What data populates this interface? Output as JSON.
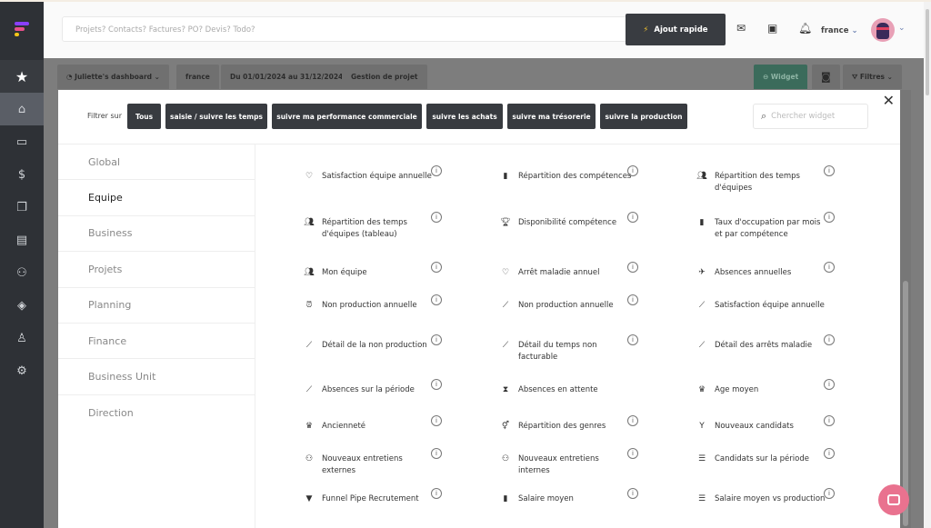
{
  "header": {
    "search_placeholder": "Projets? Contacts? Factures? PO? Devis? Todo?",
    "quick_add": "Ajout rapide",
    "country": "france"
  },
  "toolbar": {
    "dashboard": "Juliette's dashboard",
    "country": "france",
    "period": "Du 01/01/2024 au 31/12/2024",
    "project": "Gestion de projet",
    "widget": "Widget",
    "filters": "Filtres"
  },
  "modal": {
    "filter_label": "Filtrer sur",
    "filters": [
      "Tous",
      "saisie / suivre les temps",
      "suivre ma performance commerciale",
      "suivre les achats",
      "suivre ma trésorerie",
      "suivre la production"
    ],
    "search_placeholder": "Chercher widget",
    "categories": [
      "Global",
      "Equipe",
      "Business",
      "Projets",
      "Planning",
      "Finance",
      "Business Unit",
      "Direction"
    ],
    "selected_category": "Equipe",
    "widgets": [
      {
        "label": "Satisfaction équipe annuelle",
        "icon": "heart-icon"
      },
      {
        "label": "Répartition des compétences",
        "icon": "bar-chart-icon"
      },
      {
        "label": "Répartition des temps d'équipes",
        "icon": "group-icon"
      },
      {
        "label": "Répartition des temps d'équipes (tableau)",
        "icon": "group-icon"
      },
      {
        "label": "Disponibilité compétence",
        "icon": "trophy-icon"
      },
      {
        "label": "Taux d'occupation par mois et par compétence",
        "icon": "bar-chart-icon"
      },
      {
        "label": "Mon équipe",
        "icon": "group-icon"
      },
      {
        "label": "Arrêt maladie annuel",
        "icon": "heart-icon"
      },
      {
        "label": "Absences annuelles",
        "icon": "plane-departure-icon"
      },
      {
        "label": "Non production annuelle",
        "icon": "alarm-off-icon"
      },
      {
        "label": "Non production annuelle",
        "icon": "line-chart-icon"
      },
      {
        "label": "Satisfaction équipe annuelle",
        "icon": "line-chart-icon"
      },
      {
        "label": "Détail de la non production",
        "icon": "line-chart-icon"
      },
      {
        "label": "Détail du temps non facturable",
        "icon": "line-chart-icon"
      },
      {
        "label": "Détail des arrêts maladie",
        "icon": "line-chart-icon"
      },
      {
        "label": "Absences sur la période",
        "icon": "line-chart-icon"
      },
      {
        "label": "Absences en attente",
        "icon": "hourglass-icon"
      },
      {
        "label": "Age moyen",
        "icon": "crown-icon"
      },
      {
        "label": "Ancienneté",
        "icon": "crown-icon"
      },
      {
        "label": "Répartition des genres",
        "icon": "gender-icon"
      },
      {
        "label": "Nouveaux candidats",
        "icon": "person-raised-icon"
      },
      {
        "label": "Nouveaux entretiens externes",
        "icon": "group-add-icon"
      },
      {
        "label": "Nouveaux entretiens internes",
        "icon": "group-add-icon"
      },
      {
        "label": "Candidats sur la période",
        "icon": "list-icon"
      },
      {
        "label": "Funnel Pipe Recrutement",
        "icon": "funnel-icon"
      },
      {
        "label": "Salaire moyen",
        "icon": "bar-chart-icon"
      },
      {
        "label": "Salaire moyen vs production",
        "icon": "list-icon"
      }
    ]
  },
  "colors": {
    "sidebar": "#2e3136",
    "button_dark": "#383b40",
    "widget_green": "#3b6b5b",
    "chat": "#e9728f",
    "logo": [
      "#8a3ffc",
      "#e8508a",
      "#f5c518"
    ]
  }
}
